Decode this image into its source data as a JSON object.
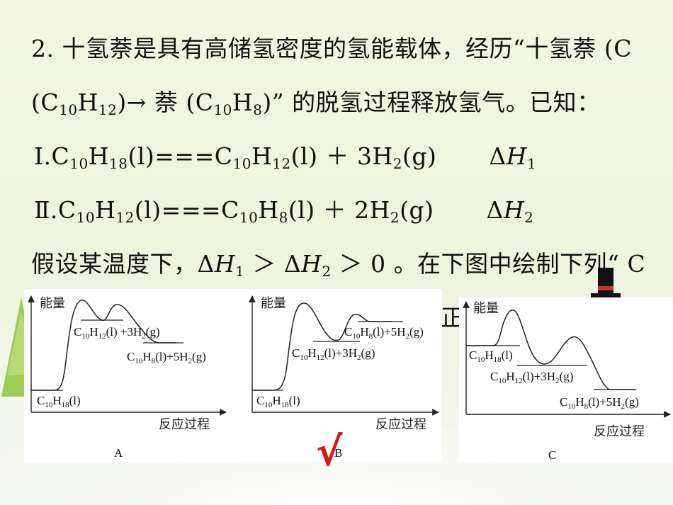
{
  "question": {
    "line1": "2. 十氢萘是具有高储氢密度的氢能载体，经历“十氢萘 (C",
    "line2_pre": "(C",
    "line2_s1": "10",
    "line2_m1": "H",
    "line2_s2": "12",
    "line2_m2": ")→ 萘 (C",
    "line2_s3": "10",
    "line2_m3": "H",
    "line2_s4": "8",
    "line2_post": ")”  的脱氢过程释放氢气。已知：",
    "r1": {
      "num": "Ⅰ.",
      "a": "C",
      "a1": "10",
      "b": "H",
      "b1": "18",
      "c": "(l)===C",
      "c1": "10",
      "d": "H",
      "d1": "12",
      "e": "(l) ＋ 3H",
      "e1": "2",
      "f": "(g)",
      "dh": "Δ",
      "dh_h": "H",
      "dh_sub": "1"
    },
    "r2": {
      "num": "Ⅱ.",
      "a": "C",
      "a1": "10",
      "b": "H",
      "b1": "12",
      "c": "(l)===C",
      "c1": "10",
      "d": "H",
      "d1": "8",
      "e": "(l) ＋ 2H",
      "e1": "2",
      "f": "(g)",
      "dh": "Δ",
      "dh_h": "H",
      "dh_sub": "2"
    },
    "line5": {
      "pre": "假设某温度下，Δ",
      "h1": "H",
      "s1": "1",
      "mid": " ＞ Δ",
      "h2": "H",
      "s2": "2",
      "post": " ＞ 0 。在下图中绘制下列“ C"
    },
    "line6_fragment": "正"
  },
  "diagrams": [
    {
      "id": "A",
      "ylabel": "能量",
      "xlabel": "反应过程",
      "caption": "A",
      "labels": {
        "start": [
          "C",
          "10",
          "H",
          "18",
          "(l)"
        ],
        "mid": [
          "C",
          "10",
          "H",
          "12",
          "(l) +3H",
          "2",
          "(g)"
        ],
        "end": [
          "C",
          "10",
          "H",
          "8",
          "(l)+5H",
          "2",
          "(g)"
        ]
      }
    },
    {
      "id": "B",
      "ylabel": "能量",
      "xlabel": "反应过程",
      "caption": "B",
      "labels": {
        "start": [
          "C",
          "10",
          "H",
          "18",
          "(l)"
        ],
        "mid": [
          "C",
          "10",
          "H",
          "12",
          "(l)+3H",
          "2",
          "(g)"
        ],
        "end": [
          "C",
          "10",
          "H",
          "8",
          "(l)+5H",
          "2",
          "(g)"
        ]
      }
    },
    {
      "id": "C",
      "ylabel": "能量",
      "xlabel": "反应过程",
      "caption": "C",
      "labels": {
        "start": [
          "C",
          "10",
          "H",
          "18",
          "(l)"
        ],
        "mid": [
          "C",
          "10",
          "H",
          "12",
          "(l)+3H",
          "2",
          "(g)"
        ],
        "end": [
          "C",
          "10",
          "H",
          "8",
          "(l)+5H",
          "2",
          "(g)"
        ]
      }
    }
  ],
  "answer_mark": "√",
  "colors": {
    "check": "#d41a1a",
    "tree": "#8cc63f",
    "hat": "#111111"
  }
}
